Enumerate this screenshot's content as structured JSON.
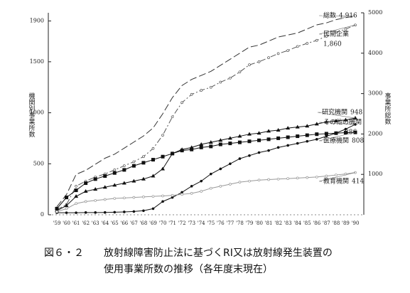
{
  "chart_data": {
    "type": "line",
    "ylabel": "機関別事業所数",
    "y2label": "事業所総数",
    "caption": {
      "number": "図６・２",
      "lines": [
        "放射線障害防止法に基づくRI又は放射線発生装置の",
        "使用事業所数の推移（各年度末現在）"
      ]
    },
    "categories": [
      "'59",
      "'60",
      "'61",
      "'62",
      "'63",
      "'64",
      "'65",
      "'66",
      "'67",
      "'68",
      "'69",
      "'70",
      "'71",
      "'72",
      "'73",
      "'74",
      "'75",
      "'76",
      "'77",
      "'78",
      "'79",
      "'80",
      "'81",
      "'82",
      "'83",
      "'84",
      "'85",
      "'86",
      "'87",
      "'88",
      "'89",
      "'90"
    ],
    "ylim": [
      0,
      1980
    ],
    "yticks": [
      0,
      500,
      1000,
      1500,
      1900
    ],
    "y2lim": [
      0,
      5000
    ],
    "y2ticks": [
      1000,
      2000,
      3000,
      4000,
      5000
    ],
    "series": [
      {
        "name": "総数",
        "axis": "y2",
        "color": "#333333",
        "dash": "10 4",
        "marker": "none",
        "values": [
          200,
          500,
          1000,
          1100,
          1250,
          1400,
          1500,
          1650,
          1800,
          1950,
          2150,
          2500,
          2900,
          3200,
          3350,
          3450,
          3550,
          3700,
          3850,
          4000,
          4150,
          4200,
          4300,
          4400,
          4450,
          4500,
          4600,
          4700,
          4750,
          4830,
          4880,
          4916
        ],
        "value_labels": [
          null,
          null,
          null,
          null,
          null,
          null,
          null,
          null,
          null,
          null,
          null,
          null,
          null,
          null,
          null,
          null,
          null,
          null,
          null,
          null,
          null,
          null,
          null,
          null,
          null,
          null,
          null,
          null,
          null,
          null,
          null,
          "4,916"
        ]
      },
      {
        "name": "民間企業",
        "color": "#555555",
        "dash": "8 3 2 3",
        "marker": "open",
        "values": [
          50,
          100,
          280,
          330,
          370,
          400,
          440,
          480,
          520,
          570,
          650,
          780,
          960,
          1100,
          1180,
          1220,
          1250,
          1300,
          1340,
          1400,
          1470,
          1500,
          1540,
          1580,
          1610,
          1650,
          1680,
          1710,
          1750,
          1790,
          1820,
          1860
        ],
        "value_labels": [
          null,
          null,
          null,
          null,
          null,
          null,
          null,
          null,
          null,
          null,
          null,
          null,
          null,
          null,
          null,
          null,
          null,
          null,
          null,
          null,
          null,
          null,
          null,
          null,
          null,
          null,
          null,
          null,
          null,
          null,
          null,
          "1,860"
        ]
      },
      {
        "name": "研究機関",
        "color": "#111111",
        "dash": "none",
        "marker": "triangle",
        "values": [
          40,
          90,
          180,
          230,
          250,
          270,
          290,
          310,
          330,
          350,
          380,
          450,
          600,
          640,
          660,
          690,
          710,
          730,
          750,
          770,
          790,
          800,
          820,
          830,
          850,
          860,
          870,
          890,
          910,
          920,
          930,
          948
        ],
        "value_labels": [
          null,
          null,
          null,
          null,
          null,
          null,
          null,
          null,
          null,
          null,
          null,
          null,
          null,
          null,
          null,
          null,
          null,
          null,
          null,
          null,
          null,
          null,
          null,
          null,
          null,
          null,
          null,
          null,
          null,
          null,
          null,
          "948"
        ]
      },
      {
        "name": "その他の機関",
        "color": "#111111",
        "dash": "none",
        "marker": "dot",
        "values": [
          20,
          20,
          20,
          22,
          22,
          23,
          25,
          28,
          32,
          40,
          60,
          130,
          170,
          220,
          280,
          330,
          400,
          450,
          500,
          550,
          580,
          610,
          630,
          660,
          680,
          700,
          720,
          740,
          770,
          800,
          840,
          886
        ],
        "value_labels": [
          null,
          null,
          null,
          null,
          null,
          null,
          null,
          null,
          null,
          null,
          null,
          null,
          null,
          null,
          null,
          null,
          null,
          null,
          null,
          null,
          null,
          null,
          null,
          null,
          null,
          null,
          null,
          null,
          null,
          null,
          null,
          "886"
        ]
      },
      {
        "name": "医療機関",
        "color": "#111111",
        "dash": "none",
        "marker": "square",
        "values": [
          60,
          170,
          240,
          310,
          350,
          380,
          410,
          440,
          480,
          510,
          540,
          570,
          600,
          630,
          640,
          660,
          670,
          690,
          700,
          710,
          720,
          730,
          740,
          750,
          760,
          770,
          780,
          790,
          795,
          800,
          805,
          808
        ],
        "value_labels": [
          null,
          null,
          null,
          null,
          null,
          null,
          null,
          null,
          null,
          null,
          null,
          null,
          null,
          null,
          null,
          null,
          null,
          null,
          null,
          null,
          null,
          null,
          null,
          null,
          null,
          null,
          null,
          null,
          null,
          null,
          null,
          "808"
        ]
      },
      {
        "name": "教育機関",
        "color": "#999999",
        "dash": "none",
        "marker": "open",
        "values": [
          30,
          60,
          110,
          130,
          140,
          150,
          160,
          165,
          170,
          175,
          180,
          185,
          190,
          200,
          210,
          230,
          260,
          280,
          300,
          320,
          330,
          340,
          345,
          350,
          355,
          360,
          365,
          370,
          380,
          390,
          400,
          414
        ],
        "value_labels": [
          null,
          null,
          null,
          null,
          null,
          null,
          null,
          null,
          null,
          null,
          null,
          null,
          null,
          null,
          null,
          null,
          null,
          null,
          null,
          null,
          null,
          null,
          null,
          null,
          null,
          null,
          null,
          null,
          null,
          null,
          null,
          "414"
        ]
      }
    ]
  }
}
